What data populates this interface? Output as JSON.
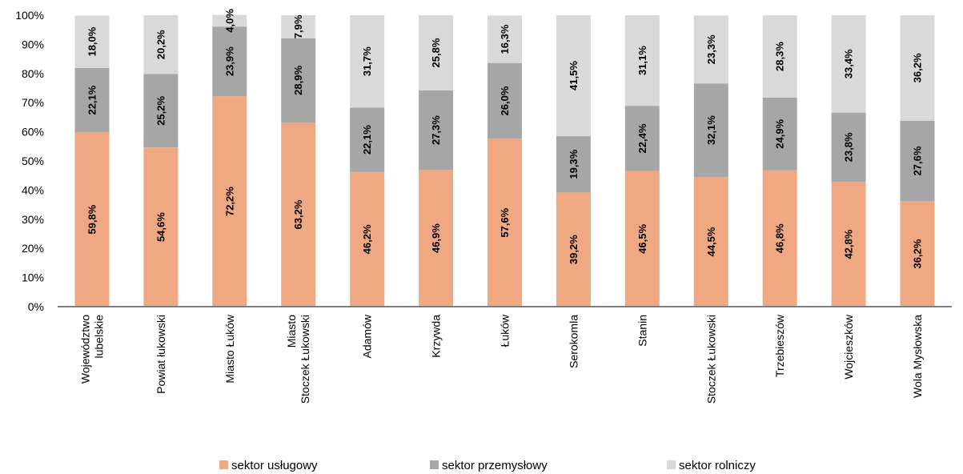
{
  "chart_data": {
    "type": "bar",
    "stacked": true,
    "percent_stacked": true,
    "ylim": [
      0,
      100
    ],
    "y_ticks": [
      "0%",
      "10%",
      "20%",
      "30%",
      "40%",
      "50%",
      "60%",
      "70%",
      "80%",
      "90%",
      "100%"
    ],
    "grid": false,
    "legend_position": "bottom",
    "categories": [
      [
        "Województwo",
        "lubelskie"
      ],
      [
        "Powiat łukowski"
      ],
      [
        "Miasto Łuków"
      ],
      [
        "Miasto",
        "Stoczek Łukowski"
      ],
      [
        "Adamów"
      ],
      [
        "Krzywda"
      ],
      [
        "Łuków"
      ],
      [
        "Serokomla"
      ],
      [
        "Stanin"
      ],
      [
        "Stoczek Łukowski"
      ],
      [
        "Trzebieszów"
      ],
      [
        "Wojcieszków"
      ],
      [
        "Wola Mysłowska"
      ]
    ],
    "series": [
      {
        "name": "sektor usługowy",
        "color": "#f0a882",
        "values": [
          59.8,
          54.6,
          72.2,
          63.2,
          46.2,
          46.9,
          57.6,
          39.2,
          46.5,
          44.5,
          46.8,
          42.8,
          36.2
        ],
        "labels": [
          "59,8%",
          "54,6%",
          "72,2%",
          "63,2%",
          "46,2%",
          "46,9%",
          "57,6%",
          "39,2%",
          "46,5%",
          "44,5%",
          "46,8%",
          "42,8%",
          "36,2%"
        ]
      },
      {
        "name": "sektor przemysłowy",
        "color": "#a6a6a6",
        "values": [
          22.1,
          25.2,
          23.9,
          28.9,
          22.1,
          27.3,
          26.0,
          19.3,
          22.4,
          32.1,
          24.9,
          23.8,
          27.6
        ],
        "labels": [
          "22,1%",
          "25,2%",
          "23,9%",
          "28,9%",
          "22,1%",
          "27,3%",
          "26,0%",
          "19,3%",
          "22,4%",
          "32,1%",
          "24,9%",
          "23,8%",
          "27,6%"
        ]
      },
      {
        "name": "sektor rolniczy",
        "color": "#d9d9d9",
        "values": [
          18.0,
          20.2,
          4.0,
          7.9,
          31.7,
          25.8,
          16.3,
          41.5,
          31.1,
          23.3,
          28.3,
          33.4,
          36.2
        ],
        "labels": [
          "18,0%",
          "20,2%",
          "4,0%",
          "7,9%",
          "31,7%",
          "25,8%",
          "16,3%",
          "41,5%",
          "31,1%",
          "23,3%",
          "28,3%",
          "33,4%",
          "36,2%"
        ]
      }
    ]
  }
}
